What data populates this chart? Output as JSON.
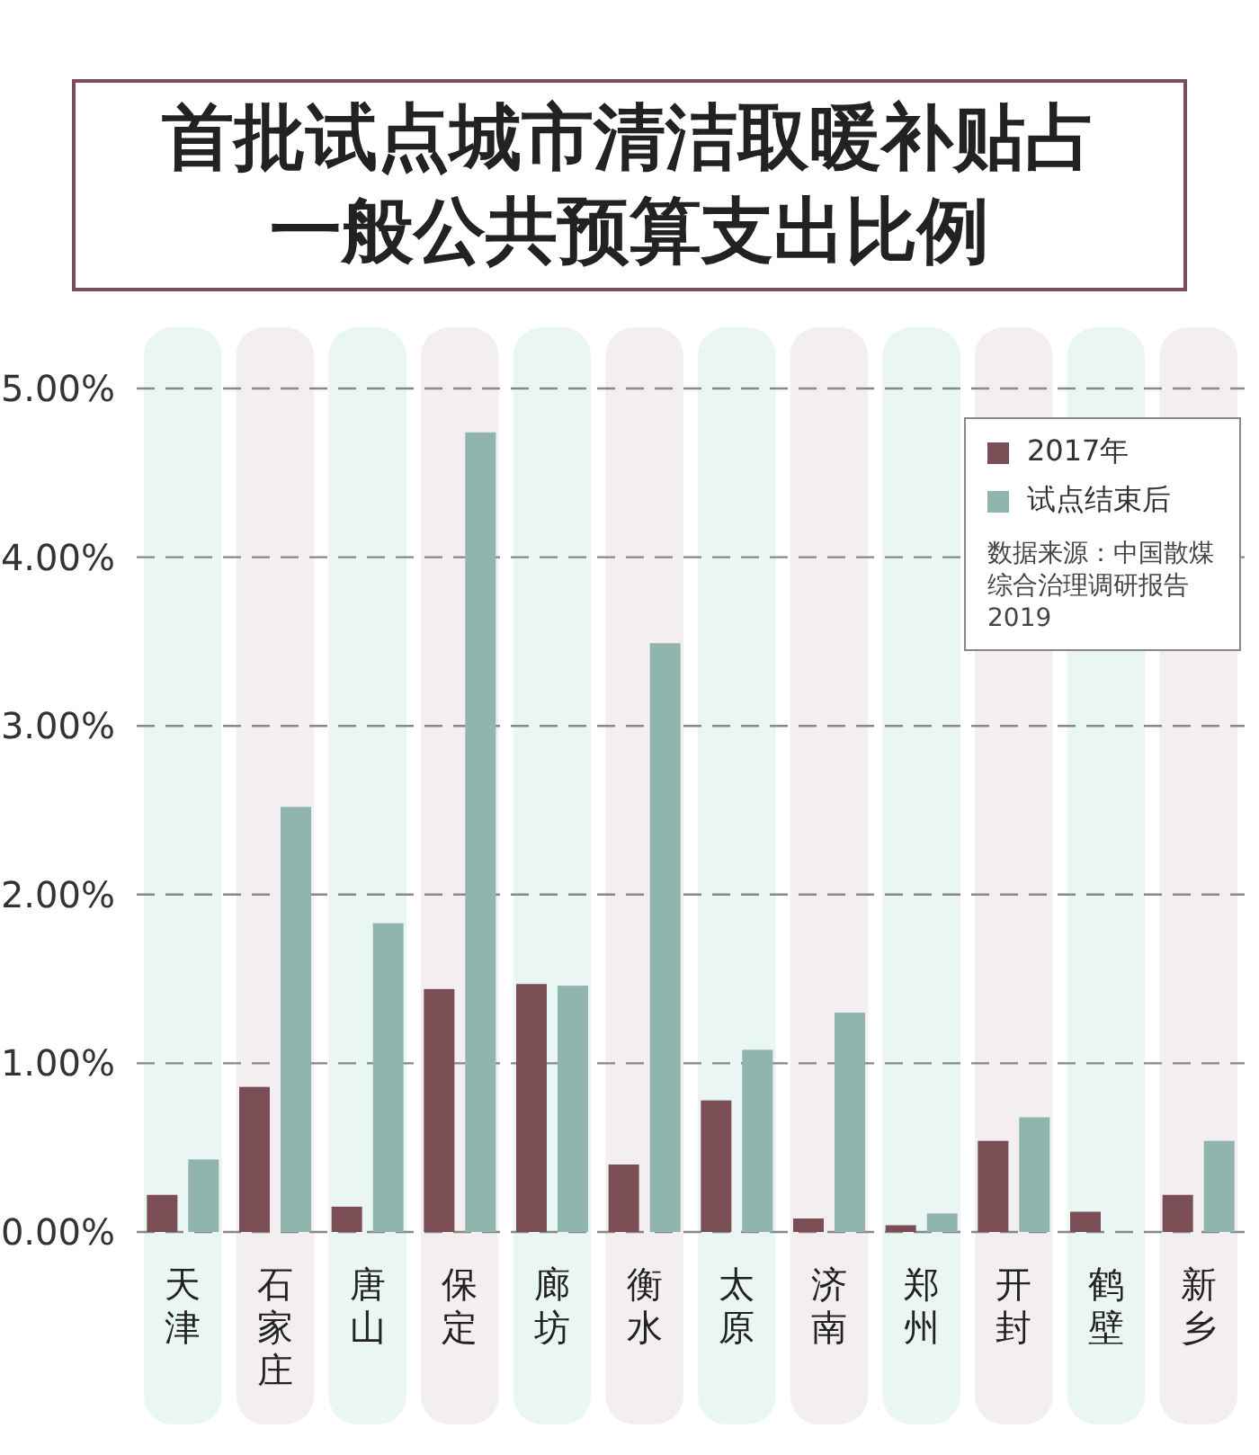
{
  "chart_data": {
    "type": "bar",
    "title": "首批试点城市清洁取暖补贴占一般公共预算支出比例",
    "categories": [
      "天津",
      "石家庄",
      "唐山",
      "保定",
      "廊坊",
      "衡水",
      "太原",
      "济南",
      "郑州",
      "开封",
      "鹤壁",
      "新乡"
    ],
    "series": [
      {
        "name": "2017年",
        "color": "#7a4e54",
        "values": [
          0.22,
          0.86,
          0.15,
          1.44,
          1.47,
          0.4,
          0.78,
          0.08,
          0.04,
          0.54,
          0.12,
          0.22
        ]
      },
      {
        "name": "试点结束后",
        "color": "#8fb5ae",
        "values": [
          0.43,
          2.52,
          1.83,
          4.74,
          1.46,
          3.49,
          1.08,
          1.3,
          0.11,
          0.68,
          null,
          0.54
        ]
      }
    ],
    "ylim": [
      0,
      5
    ],
    "yticks": [
      {
        "value": 0,
        "label": "0.00%"
      },
      {
        "value": 1,
        "label": "1.00%"
      },
      {
        "value": 2,
        "label": "2.00%"
      },
      {
        "value": 3,
        "label": "3.00%"
      },
      {
        "value": 4,
        "label": "4.00%"
      },
      {
        "value": 5,
        "label": "5.00%"
      }
    ],
    "bands": [
      {
        "axis": "x",
        "from": "天津",
        "to": "天津",
        "color": "#eaf6f4"
      },
      {
        "axis": "x",
        "from": "石家庄",
        "to": "石家庄",
        "color": "#f3eef0"
      },
      {
        "axis": "x",
        "from": "唐山",
        "to": "唐山",
        "color": "#eaf6f4"
      },
      {
        "axis": "x",
        "from": "保定",
        "to": "保定",
        "color": "#f3eef0"
      },
      {
        "axis": "x",
        "from": "廊坊",
        "to": "廊坊",
        "color": "#eaf6f4"
      },
      {
        "axis": "x",
        "from": "衡水",
        "to": "衡水",
        "color": "#f3eef0"
      },
      {
        "axis": "x",
        "from": "太原",
        "to": "太原",
        "color": "#eaf6f4"
      },
      {
        "axis": "x",
        "from": "济南",
        "to": "济南",
        "color": "#f3eef0"
      },
      {
        "axis": "x",
        "from": "郑州",
        "to": "郑州",
        "color": "#eaf6f4"
      },
      {
        "axis": "x",
        "from": "开封",
        "to": "开封",
        "color": "#f3eef0"
      },
      {
        "axis": "x",
        "from": "鹤壁",
        "to": "鹤壁",
        "color": "#eaf6f4"
      },
      {
        "axis": "x",
        "from": "新乡",
        "to": "新乡",
        "color": "#f3eef0"
      }
    ],
    "grid": "y",
    "legend": "top right",
    "annotations": [
      "数据来源：中国散煤综合治理调研报告2019"
    ]
  }
}
